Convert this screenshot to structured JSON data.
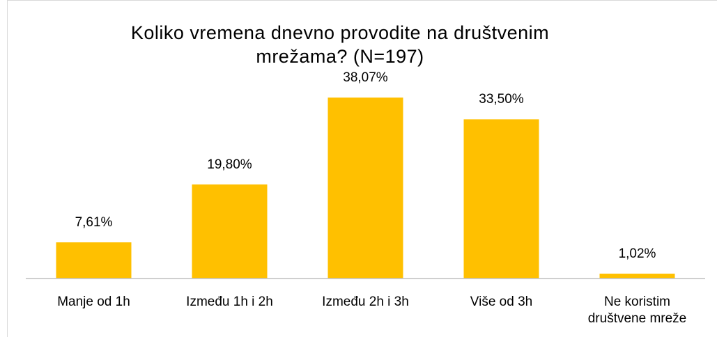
{
  "chart_data": {
    "type": "bar",
    "title": "Koliko vremena dnevno provodite na društvenim mrežama? (N=197)",
    "categories": [
      "Manje od 1h",
      "Između 1h i 2h",
      "Između 2h i 3h",
      "Više od 3h",
      "Ne koristim društvene mreže"
    ],
    "values": [
      7.61,
      19.8,
      38.07,
      33.5,
      1.02
    ],
    "value_labels": [
      "7,61%",
      "19,80%",
      "38,07%",
      "33,50%",
      "1,02%"
    ],
    "color": "#ffc000",
    "ylim": [
      0,
      40
    ]
  }
}
